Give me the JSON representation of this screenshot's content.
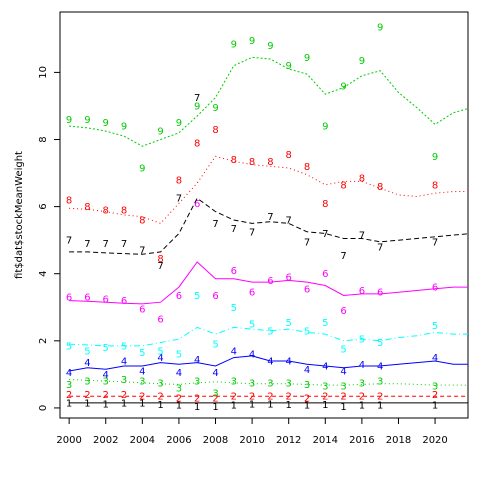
{
  "chart_data": {
    "type": "line",
    "title": "",
    "xlabel": "",
    "ylabel": "fit$dat$stockMeanWeight",
    "xlim": [
      1999.5,
      2021.8
    ],
    "ylim": [
      -0.3,
      11.8
    ],
    "xticks": [
      2000,
      2002,
      2004,
      2006,
      2008,
      2010,
      2012,
      2014,
      2016,
      2018,
      2020
    ],
    "xtick_labels": [
      "2000",
      "2002",
      "2004",
      "2006",
      "2008",
      "2010",
      "2012",
      "2014",
      "2016",
      "2018",
      "2020"
    ],
    "yticks": [
      0,
      2,
      4,
      6,
      8,
      10
    ],
    "ytick_labels": [
      "0",
      "2",
      "4",
      "6",
      "8",
      "10"
    ],
    "fit_x": [
      2000,
      2001,
      2002,
      2003,
      2004,
      2005,
      2006,
      2007,
      2008,
      2009,
      2010,
      2011,
      2012,
      2013,
      2014,
      2015,
      2016,
      2017,
      2018,
      2019,
      2020,
      2021,
      2022
    ],
    "series": [
      {
        "label": "1",
        "color": "#000000",
        "dash": "",
        "fit": [
          0.15,
          0.15,
          0.15,
          0.15,
          0.15,
          0.15,
          0.15,
          0.15,
          0.15,
          0.15,
          0.15,
          0.15,
          0.15,
          0.15,
          0.15,
          0.15,
          0.15,
          0.15,
          0.15,
          0.15,
          0.15,
          0.15,
          0.15
        ],
        "obs_x": [
          2000,
          2001,
          2002,
          2003,
          2004,
          2005,
          2006,
          2007,
          2008,
          2009,
          2010,
          2011,
          2012,
          2013,
          2014,
          2015,
          2016,
          2017,
          2020
        ],
        "obs_y": [
          0.15,
          0.15,
          0.12,
          0.15,
          0.15,
          0.1,
          0.08,
          0.05,
          0.05,
          0.08,
          0.12,
          0.12,
          0.1,
          0.08,
          0.1,
          0.05,
          0.08,
          0.08,
          0.08
        ]
      },
      {
        "label": "2",
        "color": "#ff0000",
        "dash": "4,3",
        "fit": [
          0.35,
          0.35,
          0.35,
          0.35,
          0.35,
          0.35,
          0.35,
          0.35,
          0.35,
          0.35,
          0.35,
          0.35,
          0.35,
          0.35,
          0.35,
          0.35,
          0.35,
          0.35,
          0.35,
          0.35,
          0.35,
          0.35,
          0.35
        ],
        "obs_x": [
          2000,
          2001,
          2002,
          2003,
          2004,
          2005,
          2006,
          2007,
          2008,
          2009,
          2010,
          2011,
          2012,
          2013,
          2014,
          2015,
          2016,
          2017,
          2020
        ],
        "obs_y": [
          0.4,
          0.4,
          0.4,
          0.4,
          0.35,
          0.35,
          0.3,
          0.3,
          0.3,
          0.35,
          0.35,
          0.35,
          0.35,
          0.3,
          0.35,
          0.35,
          0.35,
          0.35,
          0.4
        ]
      },
      {
        "label": "3",
        "color": "#00cd00",
        "dash": "1,3",
        "fit": [
          0.85,
          0.82,
          0.8,
          0.78,
          0.75,
          0.72,
          0.7,
          0.75,
          0.78,
          0.75,
          0.72,
          0.72,
          0.72,
          0.7,
          0.68,
          0.68,
          0.7,
          0.72,
          0.72,
          0.7,
          0.68,
          0.68,
          0.68
        ],
        "obs_x": [
          2000,
          2001,
          2002,
          2003,
          2004,
          2005,
          2006,
          2007,
          2008,
          2009,
          2010,
          2011,
          2012,
          2013,
          2014,
          2015,
          2016,
          2017,
          2020
        ],
        "obs_y": [
          0.7,
          0.8,
          0.8,
          0.85,
          0.8,
          0.75,
          0.6,
          0.8,
          0.45,
          0.8,
          0.75,
          0.75,
          0.75,
          0.7,
          0.65,
          0.65,
          0.75,
          0.8,
          0.65
        ]
      },
      {
        "label": "4",
        "color": "#0000ff",
        "dash": "",
        "fit": [
          1.1,
          1.2,
          1.15,
          1.25,
          1.25,
          1.35,
          1.3,
          1.35,
          1.25,
          1.5,
          1.55,
          1.4,
          1.4,
          1.3,
          1.25,
          1.2,
          1.25,
          1.25,
          1.3,
          1.35,
          1.4,
          1.3,
          1.3
        ],
        "obs_x": [
          2000,
          2001,
          2002,
          2003,
          2004,
          2005,
          2006,
          2007,
          2008,
          2009,
          2010,
          2011,
          2012,
          2013,
          2014,
          2015,
          2016,
          2017,
          2020
        ],
        "obs_y": [
          1.05,
          1.35,
          1.0,
          1.4,
          1.1,
          1.5,
          1.05,
          1.45,
          1.05,
          1.7,
          1.6,
          1.4,
          1.4,
          1.15,
          1.25,
          1.1,
          1.3,
          1.25,
          1.5
        ]
      },
      {
        "label": "5",
        "color": "#00ffff",
        "dash": "6,3,1,3",
        "fit": [
          1.9,
          1.88,
          1.85,
          1.85,
          1.85,
          1.95,
          2.05,
          2.4,
          2.2,
          2.4,
          2.35,
          2.3,
          2.35,
          2.25,
          2.2,
          2.0,
          2.05,
          2.0,
          2.1,
          2.15,
          2.25,
          2.2,
          2.2
        ],
        "obs_x": [
          2000,
          2001,
          2002,
          2003,
          2004,
          2005,
          2006,
          2007,
          2008,
          2009,
          2010,
          2011,
          2012,
          2013,
          2014,
          2015,
          2016,
          2017,
          2020
        ],
        "obs_y": [
          1.85,
          1.7,
          1.8,
          1.85,
          1.65,
          1.7,
          1.6,
          3.35,
          1.9,
          3.0,
          2.5,
          2.3,
          2.55,
          2.3,
          2.55,
          1.75,
          2.05,
          1.95,
          2.45
        ]
      },
      {
        "label": "6",
        "color": "#ff00ff",
        "dash": "",
        "fit": [
          3.2,
          3.18,
          3.15,
          3.12,
          3.1,
          3.15,
          3.6,
          4.35,
          3.85,
          3.85,
          3.75,
          3.75,
          3.8,
          3.75,
          3.65,
          3.35,
          3.4,
          3.4,
          3.45,
          3.5,
          3.55,
          3.6,
          3.6
        ],
        "obs_x": [
          2000,
          2001,
          2002,
          2003,
          2004,
          2005,
          2006,
          2007,
          2008,
          2009,
          2010,
          2011,
          2012,
          2013,
          2014,
          2015,
          2016,
          2017,
          2020
        ],
        "obs_y": [
          3.3,
          3.3,
          3.25,
          3.2,
          2.95,
          2.65,
          3.35,
          6.1,
          3.35,
          4.1,
          3.45,
          3.8,
          3.9,
          3.55,
          4.0,
          2.9,
          3.5,
          3.45,
          3.6
        ]
      },
      {
        "label": "7",
        "color": "#000000",
        "dash": "5,3",
        "fit": [
          4.65,
          4.65,
          4.62,
          4.6,
          4.58,
          4.65,
          5.2,
          6.25,
          5.85,
          5.6,
          5.5,
          5.55,
          5.5,
          5.25,
          5.2,
          5.05,
          5.05,
          4.95,
          5.0,
          5.05,
          5.1,
          5.15,
          5.2
        ],
        "obs_x": [
          2000,
          2001,
          2002,
          2003,
          2004,
          2005,
          2006,
          2007,
          2008,
          2009,
          2010,
          2011,
          2012,
          2013,
          2014,
          2015,
          2016,
          2017,
          2020
        ],
        "obs_y": [
          5.0,
          4.9,
          4.9,
          4.9,
          4.7,
          4.25,
          6.25,
          9.25,
          5.5,
          5.35,
          5.25,
          5.7,
          5.6,
          4.95,
          5.2,
          4.55,
          5.15,
          4.8,
          4.95
        ]
      },
      {
        "label": "8",
        "color": "#ff0000",
        "dash": "1,3",
        "fit": [
          5.95,
          5.92,
          5.85,
          5.75,
          5.7,
          5.5,
          6.1,
          6.7,
          7.5,
          7.35,
          7.25,
          7.2,
          7.15,
          6.95,
          6.65,
          6.75,
          6.75,
          6.55,
          6.35,
          6.3,
          6.4,
          6.45,
          6.45
        ],
        "obs_x": [
          2000,
          2001,
          2002,
          2003,
          2004,
          2005,
          2006,
          2007,
          2008,
          2009,
          2010,
          2011,
          2012,
          2013,
          2014,
          2015,
          2016,
          2017,
          2020
        ],
        "obs_y": [
          6.2,
          6.0,
          5.9,
          5.9,
          5.6,
          4.45,
          6.8,
          7.9,
          8.3,
          7.4,
          7.35,
          7.35,
          7.55,
          7.2,
          6.1,
          6.65,
          6.85,
          6.6,
          6.65
        ]
      },
      {
        "label": "9",
        "color": "#00cd00",
        "dash": "2,2",
        "fit": [
          8.4,
          8.35,
          8.25,
          8.1,
          7.8,
          8.0,
          8.2,
          8.7,
          9.25,
          10.2,
          10.45,
          10.4,
          10.1,
          9.95,
          9.35,
          9.55,
          9.9,
          10.05,
          9.4,
          8.95,
          8.45,
          8.8,
          8.95
        ],
        "obs_x": [
          2000,
          2001,
          2002,
          2003,
          2004,
          2005,
          2006,
          2007,
          2008,
          2009,
          2010,
          2011,
          2012,
          2013,
          2014,
          2015,
          2016,
          2017,
          2020
        ],
        "obs_y": [
          8.6,
          8.6,
          8.5,
          8.4,
          7.15,
          8.25,
          8.5,
          9.0,
          8.95,
          10.85,
          10.95,
          10.8,
          10.2,
          10.45,
          8.4,
          9.6,
          10.35,
          11.35,
          7.5
        ]
      }
    ]
  }
}
